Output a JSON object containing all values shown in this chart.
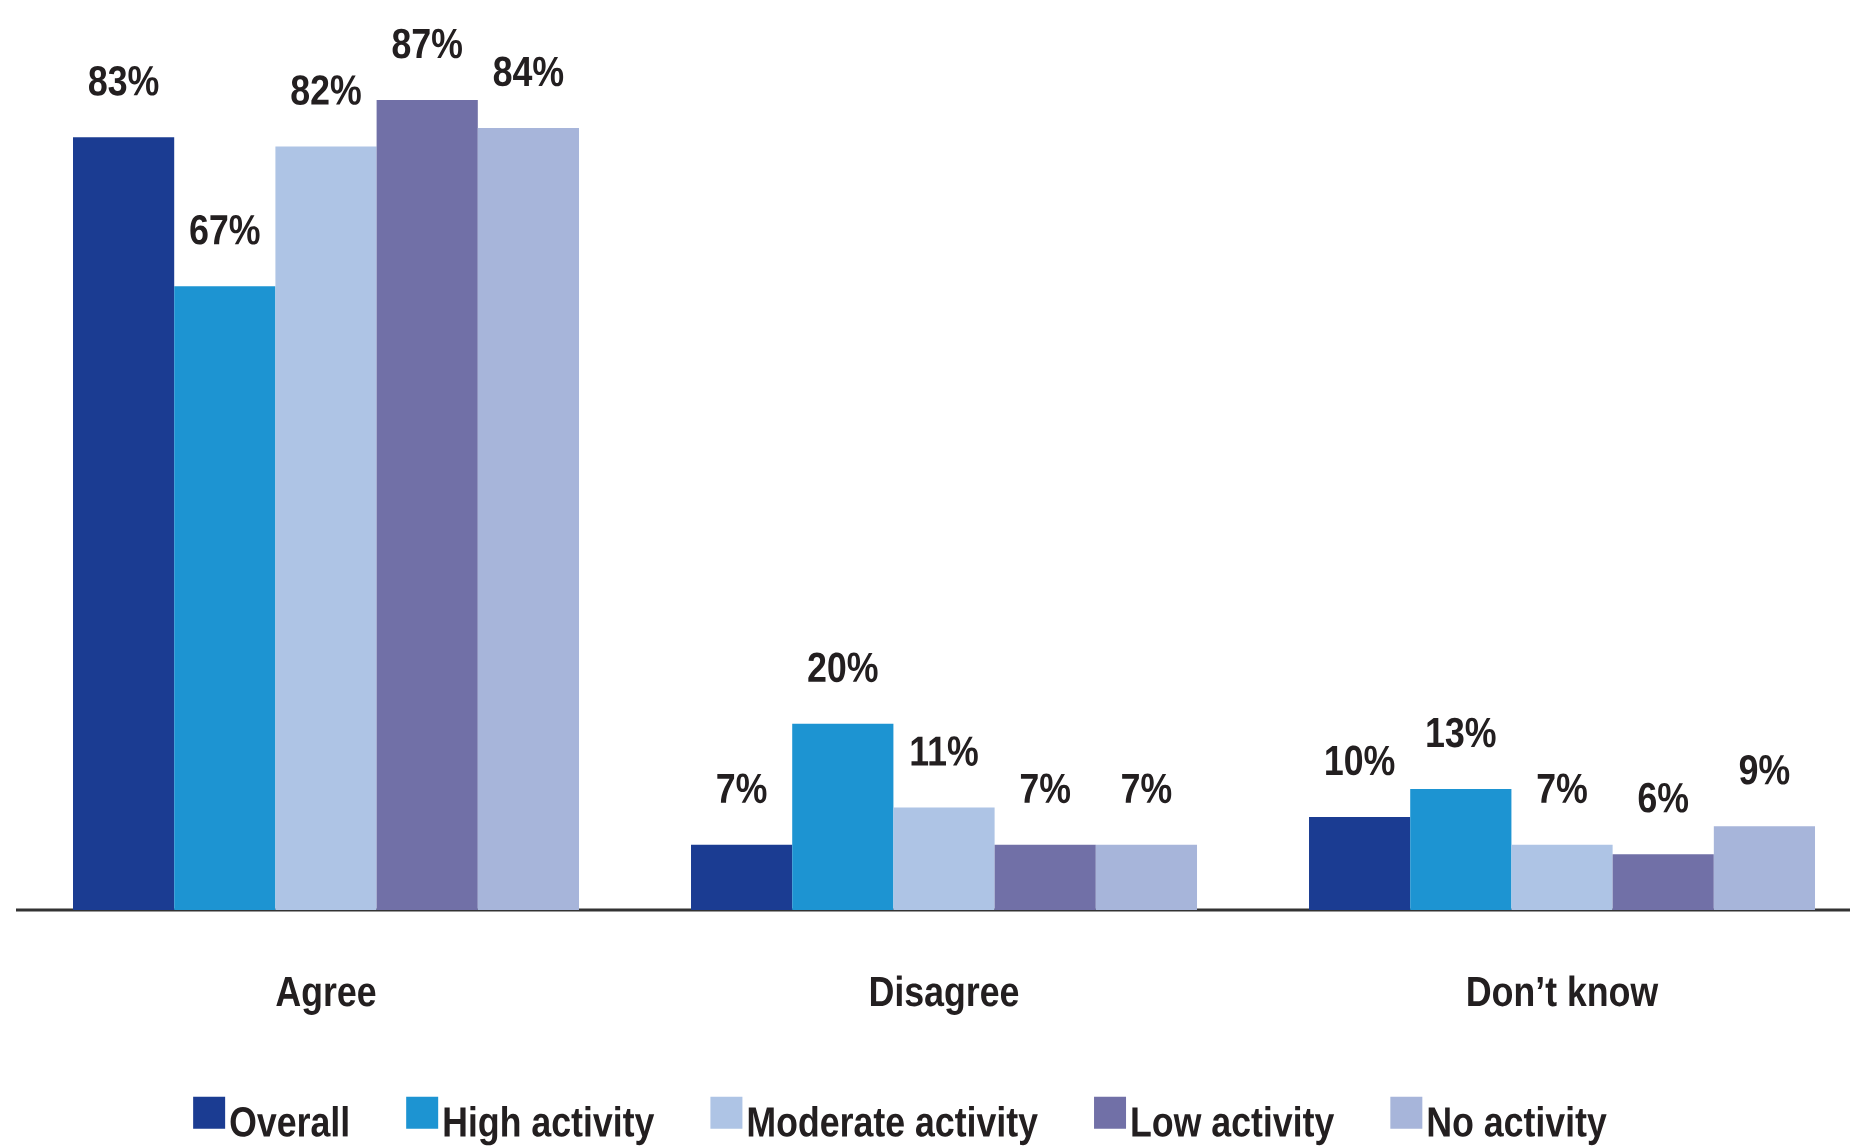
{
  "chart_data": {
    "type": "bar",
    "categories": [
      "Agree",
      "Disagree",
      "Don’t know"
    ],
    "series": [
      {
        "name": "Overall",
        "color": "#1b3c92",
        "values": [
          83,
          7,
          10
        ],
        "value_labels": [
          "83%",
          "7%",
          "10%"
        ]
      },
      {
        "name": "High activity",
        "color": "#1d94d2",
        "values": [
          67,
          20,
          13
        ],
        "value_labels": [
          "67%",
          "20%",
          "13%"
        ]
      },
      {
        "name": "Moderate activity",
        "color": "#aec4e5",
        "values": [
          82,
          11,
          7
        ],
        "value_labels": [
          "82%",
          "11%",
          "7%"
        ]
      },
      {
        "name": "Low activity",
        "color": "#7170a7",
        "values": [
          87,
          7,
          6
        ],
        "value_labels": [
          "87%",
          "7%",
          "6%"
        ]
      },
      {
        "name": "No activity",
        "color": "#a7b5da",
        "values": [
          84,
          7,
          9
        ],
        "value_labels": [
          "84%",
          "7%",
          "9%"
        ]
      }
    ],
    "legend": "bottom"
  }
}
